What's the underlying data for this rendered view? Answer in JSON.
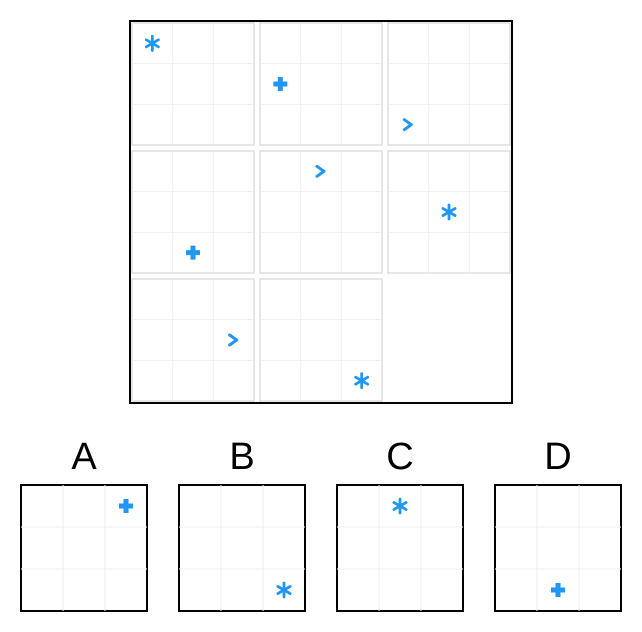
{
  "colors": {
    "symbol": "#2196f3",
    "frame": "#000000",
    "cell_border": "#dddddd",
    "grid_line": "#efefef",
    "background": "#ffffff"
  },
  "matrix": {
    "rows": 3,
    "cols": 3,
    "subgrid": 3,
    "cells": [
      {
        "row": 0,
        "col": 0,
        "symbol": "asterisk-icon",
        "sub_row": 0,
        "sub_col": 0
      },
      {
        "row": 0,
        "col": 1,
        "symbol": "plus-icon",
        "sub_row": 1,
        "sub_col": 0
      },
      {
        "row": 0,
        "col": 2,
        "symbol": "chevron-right-icon",
        "sub_row": 2,
        "sub_col": 0
      },
      {
        "row": 1,
        "col": 0,
        "symbol": "plus-icon",
        "sub_row": 2,
        "sub_col": 1
      },
      {
        "row": 1,
        "col": 1,
        "symbol": "chevron-right-icon",
        "sub_row": 0,
        "sub_col": 1
      },
      {
        "row": 1,
        "col": 2,
        "symbol": "asterisk-icon",
        "sub_row": 1,
        "sub_col": 1
      },
      {
        "row": 2,
        "col": 0,
        "symbol": "chevron-right-icon",
        "sub_row": 1,
        "sub_col": 2
      },
      {
        "row": 2,
        "col": 1,
        "symbol": "asterisk-icon",
        "sub_row": 2,
        "sub_col": 2
      },
      {
        "row": 2,
        "col": 2,
        "symbol": null
      }
    ]
  },
  "options": [
    {
      "label": "A",
      "symbol": "plus-icon",
      "sub_row": 0,
      "sub_col": 2
    },
    {
      "label": "B",
      "symbol": "asterisk-icon",
      "sub_row": 2,
      "sub_col": 2
    },
    {
      "label": "C",
      "symbol": "asterisk-icon",
      "sub_row": 0,
      "sub_col": 1
    },
    {
      "label": "D",
      "symbol": "plus-icon",
      "sub_row": 2,
      "sub_col": 1
    }
  ]
}
